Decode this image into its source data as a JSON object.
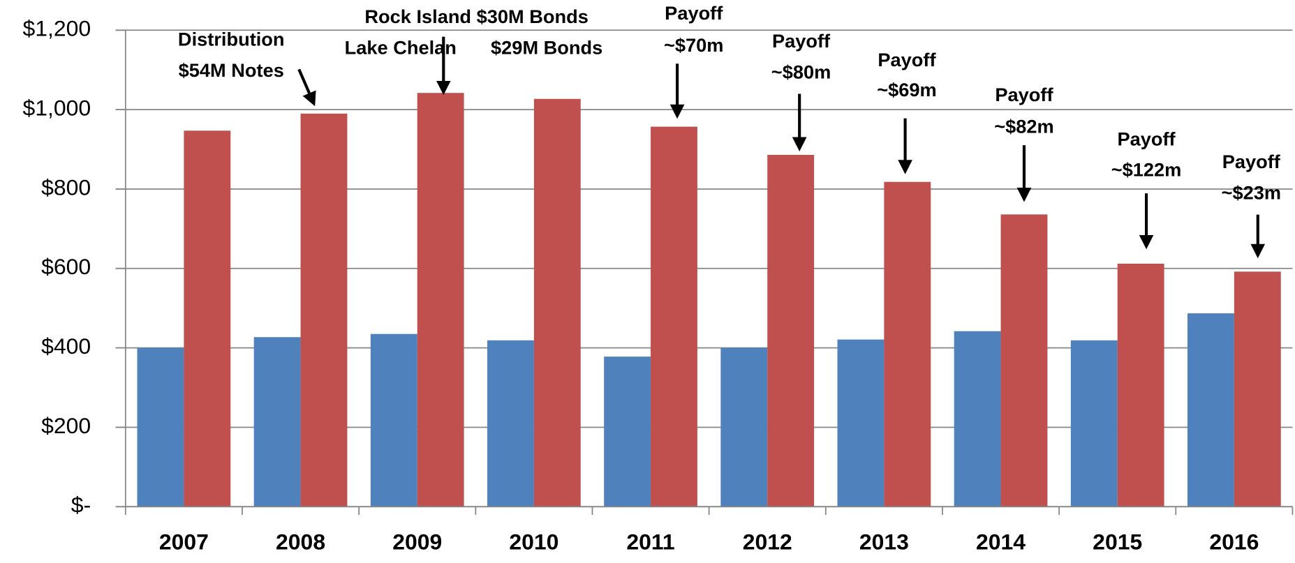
{
  "chart_data": {
    "type": "bar",
    "categories": [
      "2007",
      "2008",
      "2009",
      "2010",
      "2011",
      "2012",
      "2013",
      "2014",
      "2015",
      "2016"
    ],
    "series": [
      {
        "color": "#4f81bd",
        "values": [
          400,
          427,
          435,
          419,
          378,
          400,
          421,
          442,
          419,
          487
        ]
      },
      {
        "color": "#c0504d",
        "values": [
          947,
          990,
          1042,
          1027,
          957,
          886,
          818,
          736,
          612,
          592
        ]
      }
    ],
    "ylim": [
      0,
      1200
    ],
    "yticks": [
      {
        "value": 0,
        "label": "$-"
      },
      {
        "value": 200,
        "label": "$200"
      },
      {
        "value": 400,
        "label": "$400"
      },
      {
        "value": 600,
        "label": "$600"
      },
      {
        "value": 800,
        "label": "$800"
      },
      {
        "value": 1000,
        "label": "$1,000"
      },
      {
        "value": 1200,
        "label": "$1,200"
      }
    ],
    "grid": true,
    "annotations": [
      {
        "lines": [
          "Distribution",
          "$54M Notes"
        ]
      },
      {
        "lines": [
          "Rock Island $30M Bonds"
        ]
      },
      {
        "lines": [
          "Lake Chelan"
        ]
      },
      {
        "lines": [
          "$29M Bonds"
        ]
      },
      {
        "lines": [
          "Payoff",
          "~$70m"
        ]
      },
      {
        "lines": [
          "Payoff",
          "~$80m"
        ]
      },
      {
        "lines": [
          "Payoff",
          "~$69m"
        ]
      },
      {
        "lines": [
          "Payoff",
          "~$82m"
        ]
      },
      {
        "lines": [
          "Payoff",
          "~$122m"
        ]
      },
      {
        "lines": [
          "Payoff",
          "~$23m"
        ]
      }
    ]
  }
}
